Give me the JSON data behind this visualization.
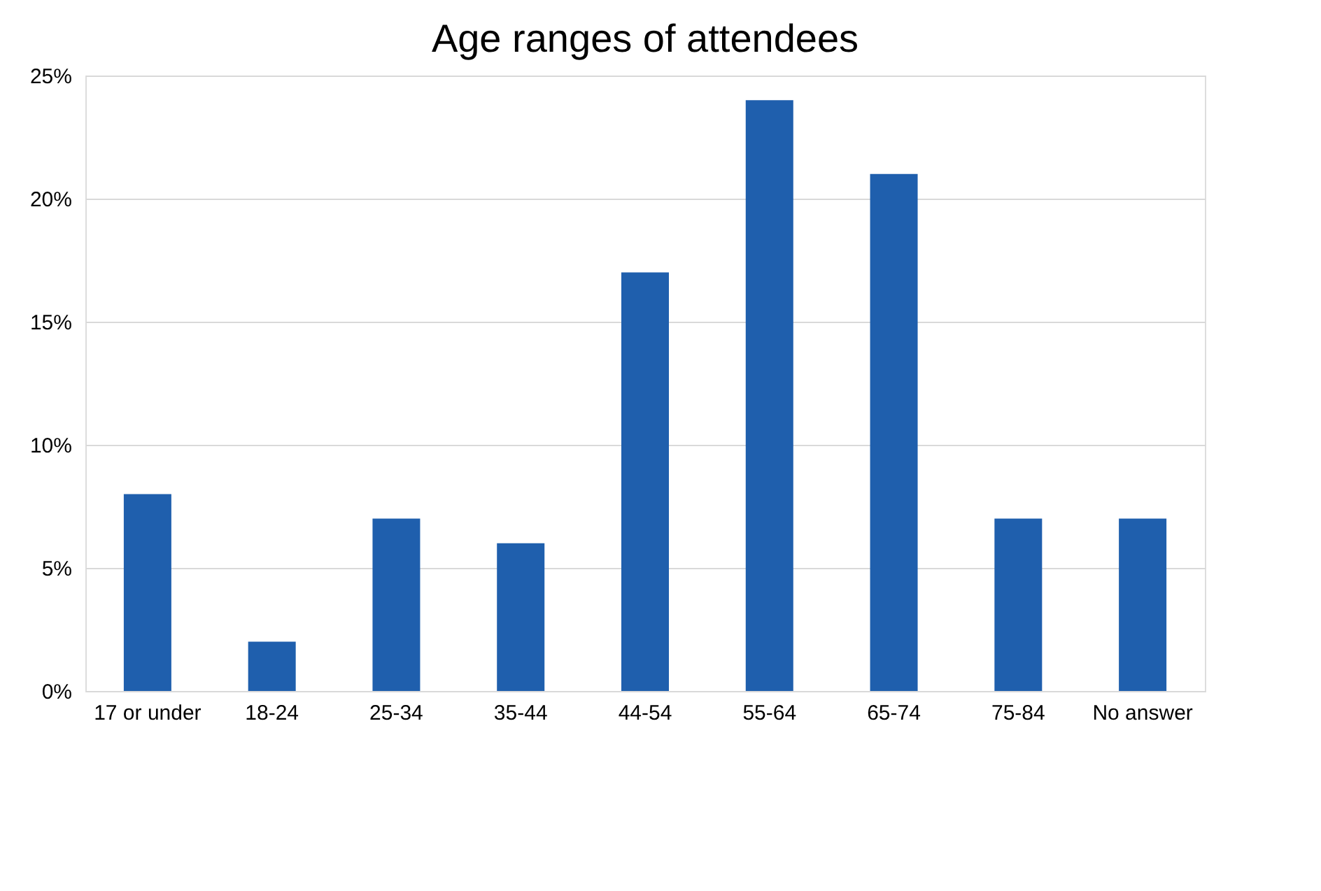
{
  "chart_data": {
    "type": "bar",
    "title": "Age ranges of attendees",
    "categories": [
      "17 or under",
      "18-24",
      "25-34",
      "35-44",
      "44-54",
      "55-64",
      "65-74",
      "75-84",
      "No answer"
    ],
    "values": [
      8,
      2,
      7,
      6,
      17,
      24,
      21,
      7,
      7
    ],
    "color": "#1f5fad",
    "ylim": [
      0,
      25
    ],
    "yticks": [
      {
        "value": 0,
        "label": "0%"
      },
      {
        "value": 5,
        "label": "5%"
      },
      {
        "value": 10,
        "label": "10%"
      },
      {
        "value": 15,
        "label": "15%"
      },
      {
        "value": 20,
        "label": "20%"
      },
      {
        "value": 25,
        "label": "25%"
      }
    ],
    "grid": "y"
  }
}
